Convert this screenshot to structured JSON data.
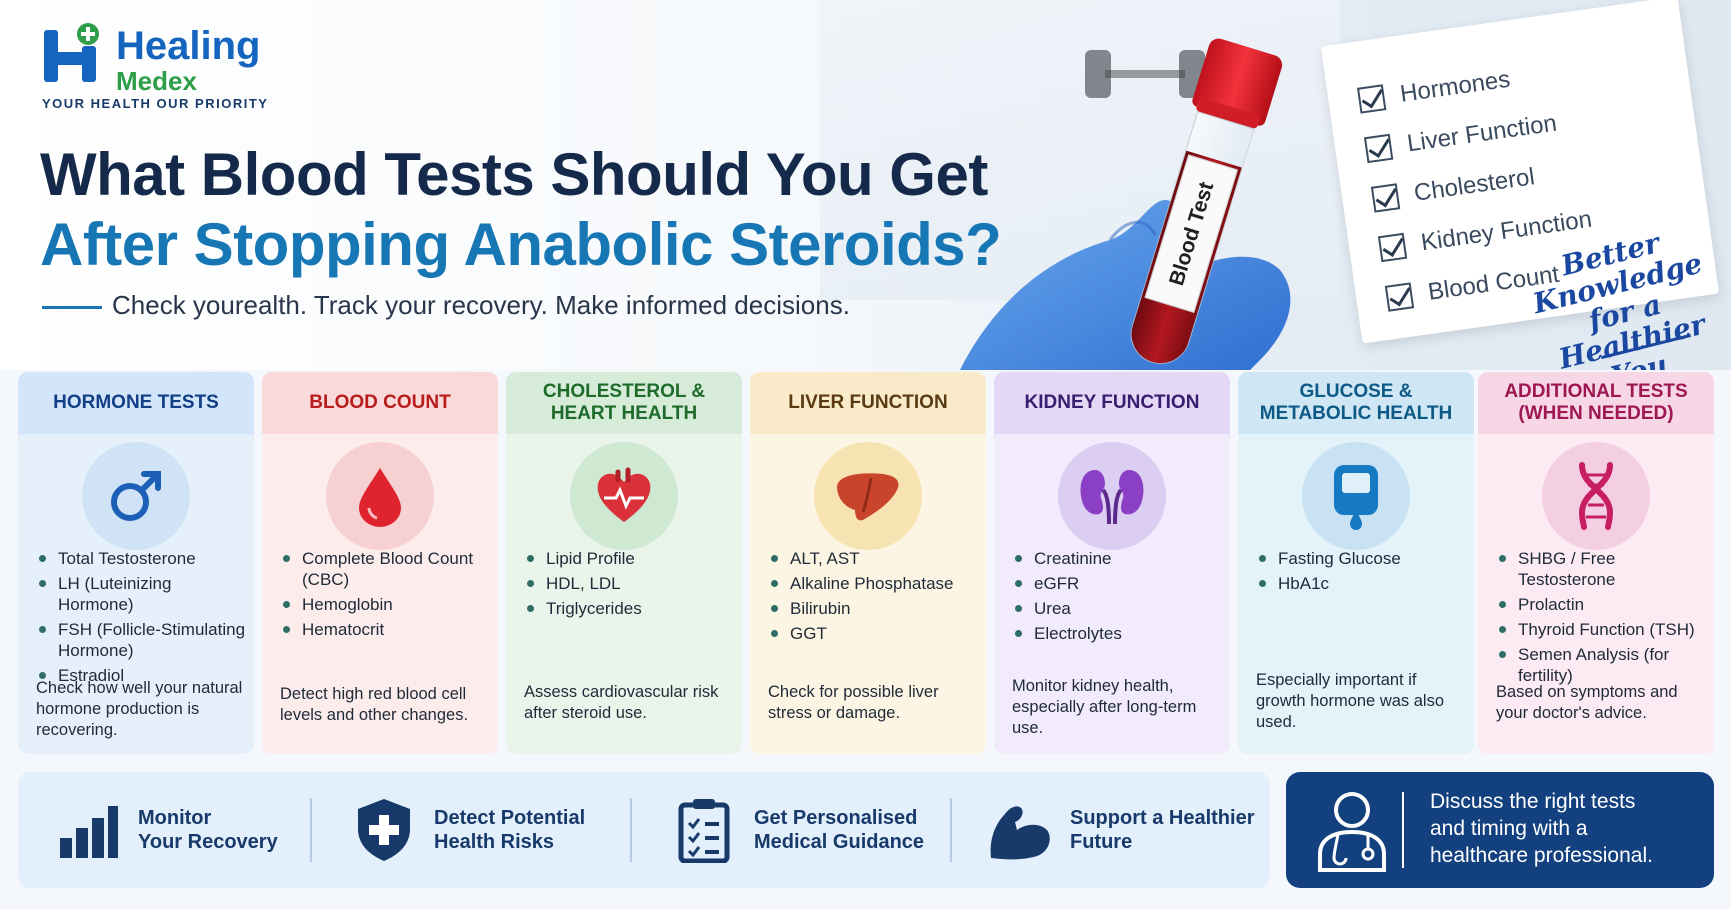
{
  "logo": {
    "name": "Healing",
    "sub": "Medex",
    "tagline": "YOUR HEALTH  OUR PRIORITY"
  },
  "title": {
    "line1": "What Blood Tests Should You Get",
    "line2": "After Stopping Anabolic Steroids?"
  },
  "tagline": "Check yourealth. Track your recovery. Make informed decisions.",
  "tube_label": "Blood Test",
  "checklist": [
    "Hormones",
    "Liver Function",
    "Cholesterol",
    "Kidney Function",
    "Blood Count"
  ],
  "script": [
    "Better",
    "Knowledge",
    "for a Healthier",
    "You"
  ],
  "cards": [
    {
      "title": "HORMONE TESTS",
      "icon": "male-symbol-icon",
      "color": "#123f86",
      "items": [
        "Total Testosterone",
        "LH (Luteinizing Hormone)",
        "FSH (Follicle-Stimulating Hormone)",
        "Estradiol"
      ],
      "note": "Check how well your natural hormone production is recovering."
    },
    {
      "title": "BLOOD COUNT",
      "icon": "blood-drop-icon",
      "color": "#b91c1c",
      "items": [
        "Complete Blood Count (CBC)",
        "Hemoglobin",
        "Hematocrit"
      ],
      "note": "Detect high red blood cell levels and other changes."
    },
    {
      "title": "CHOLESTEROL & HEART HEALTH",
      "icon": "heart-icon",
      "color": "#1f6b2c",
      "items": [
        "Lipid Profile",
        "HDL, LDL",
        "Triglycerides"
      ],
      "note": "Assess cardiovascular risk after steroid use."
    },
    {
      "title": "LIVER FUNCTION",
      "icon": "liver-icon",
      "color": "#5a3a12",
      "items": [
        "ALT, AST",
        "Alkaline Phosphatase",
        "Bilirubin",
        "GGT"
      ],
      "note": "Check for possible liver stress or damage."
    },
    {
      "title": "KIDNEY FUNCTION",
      "icon": "kidney-icon",
      "color": "#3a1d6e",
      "items": [
        "Creatinine",
        "eGFR",
        "Urea",
        "Electrolytes"
      ],
      "note": "Monitor kidney health, especially after long-term use."
    },
    {
      "title": "GLUCOSE & METABOLIC HEALTH",
      "icon": "glucose-meter-icon",
      "color": "#0e5a86",
      "items": [
        "Fasting Glucose",
        "HbA1c"
      ],
      "note": "Especially important if growth hormone was also used."
    },
    {
      "title": "ADDITIONAL TESTS (WHEN NEEDED)",
      "icon": "dna-icon",
      "color": "#9e1652",
      "items": [
        "SHBG / Free Testosterone",
        "Prolactin",
        "Thyroid Function (TSH)",
        "Semen Analysis (for fertility)"
      ],
      "note": "Based on symptoms and your doctor's advice."
    }
  ],
  "benefits": [
    {
      "line1": "Monitor",
      "line2": "Your Recovery",
      "icon": "bar-chart-icon"
    },
    {
      "line1": "Detect Potential",
      "line2": "Health Risks",
      "icon": "shield-plus-icon"
    },
    {
      "line1": "Get Personalised",
      "line2": "Medical Guidance",
      "icon": "clipboard-checklist-icon"
    },
    {
      "line1": "Support a Healthier",
      "line2": "Future",
      "icon": "flexed-arm-icon"
    }
  ],
  "cta": {
    "lines": [
      "Discuss the right tests",
      "and timing with a",
      "healthcare professional."
    ],
    "icon": "doctor-icon"
  }
}
